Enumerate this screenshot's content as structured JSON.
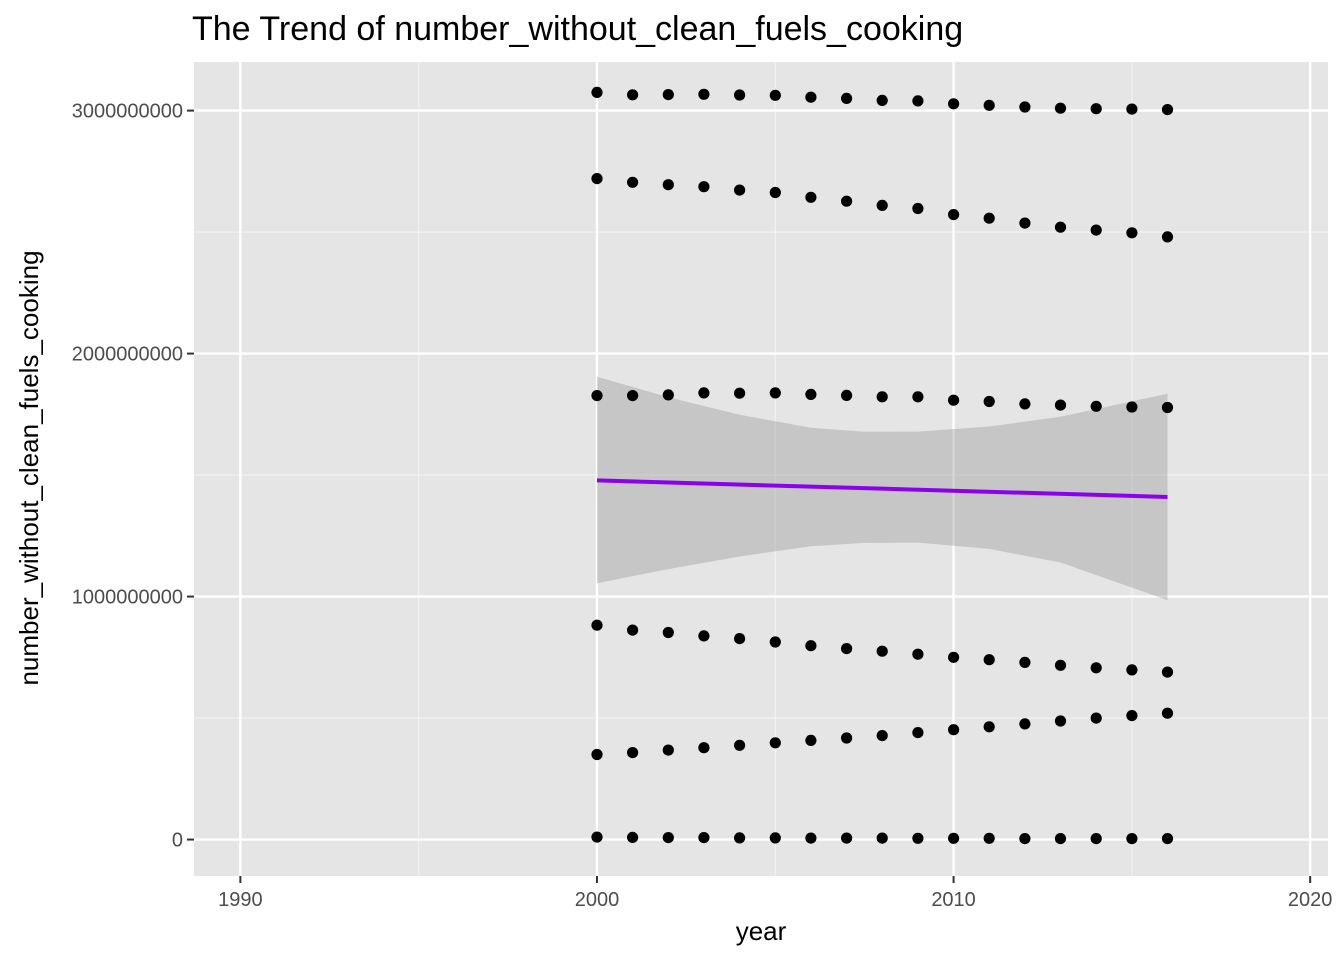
{
  "chart_data": {
    "type": "scatter",
    "title": "The Trend of number_without_clean_fuels_cooking",
    "xlabel": "year",
    "ylabel": "number_without_clean_fuels_cooking",
    "xlim": [
      1988.7,
      2020.5
    ],
    "ylim": [
      -150000000,
      3200000000
    ],
    "x_ticks": [
      1990,
      2000,
      2010,
      2020
    ],
    "x_tick_labels": [
      "1990",
      "2000",
      "2010",
      "2020"
    ],
    "y_ticks": [
      0,
      1000000000,
      2000000000,
      3000000000
    ],
    "y_tick_labels": [
      "0",
      "1000000000",
      "2000000000",
      "3000000000"
    ],
    "x": [
      2000,
      2001,
      2002,
      2003,
      2004,
      2005,
      2006,
      2007,
      2008,
      2009,
      2010,
      2011,
      2012,
      2013,
      2014,
      2015,
      2016
    ],
    "series": [
      {
        "values": [
          3075000000,
          3065000000,
          3066000000,
          3067000000,
          3064000000,
          3063000000,
          3055000000,
          3050000000,
          3042000000,
          3040000000,
          3028000000,
          3022000000,
          3015000000,
          3010000000,
          3008000000,
          3006000000,
          3004000000
        ]
      },
      {
        "values": [
          2720000000,
          2705000000,
          2695000000,
          2687000000,
          2673000000,
          2663000000,
          2643000000,
          2627000000,
          2610000000,
          2597000000,
          2572000000,
          2557000000,
          2537000000,
          2520000000,
          2508000000,
          2497000000,
          2480000000
        ]
      },
      {
        "values": [
          1827000000,
          1827000000,
          1830000000,
          1838000000,
          1837000000,
          1838000000,
          1832000000,
          1828000000,
          1822000000,
          1822000000,
          1808000000,
          1803000000,
          1793000000,
          1788000000,
          1783000000,
          1780000000,
          1778000000
        ]
      },
      {
        "values": [
          882000000,
          862000000,
          852000000,
          838000000,
          827000000,
          813000000,
          798000000,
          786000000,
          775000000,
          763000000,
          750000000,
          740000000,
          729000000,
          717000000,
          707000000,
          698000000,
          689000000
        ]
      },
      {
        "values": [
          350000000,
          358000000,
          368000000,
          378000000,
          388000000,
          398000000,
          408000000,
          418000000,
          428000000,
          440000000,
          452000000,
          464000000,
          476000000,
          488000000,
          500000000,
          510000000,
          520000000
        ]
      },
      {
        "values": [
          10000000,
          9000000,
          8000000,
          8000000,
          7000000,
          7000000,
          6000000,
          6000000,
          6000000,
          5000000,
          5000000,
          5000000,
          4000000,
          4000000,
          4000000,
          4000000,
          4000000
        ]
      }
    ],
    "trend_line": {
      "method": "lm",
      "color": "#8c00f0",
      "x": [
        2000,
        2016
      ],
      "y": [
        1478000000,
        1410000000
      ]
    },
    "confidence_band": {
      "color": "#999999",
      "x": [
        2000,
        2002,
        2004,
        2006,
        2007.5,
        2009,
        2011,
        2013,
        2016
      ],
      "upper": [
        1905000000,
        1820000000,
        1748000000,
        1695000000,
        1678000000,
        1679000000,
        1700000000,
        1740000000,
        1835000000
      ],
      "lower": [
        1055000000,
        1113000000,
        1165000000,
        1207000000,
        1221000000,
        1222000000,
        1196000000,
        1140000000,
        985000000
      ]
    },
    "panel_background": "#e5e5e5",
    "grid": true,
    "legend": "none"
  }
}
